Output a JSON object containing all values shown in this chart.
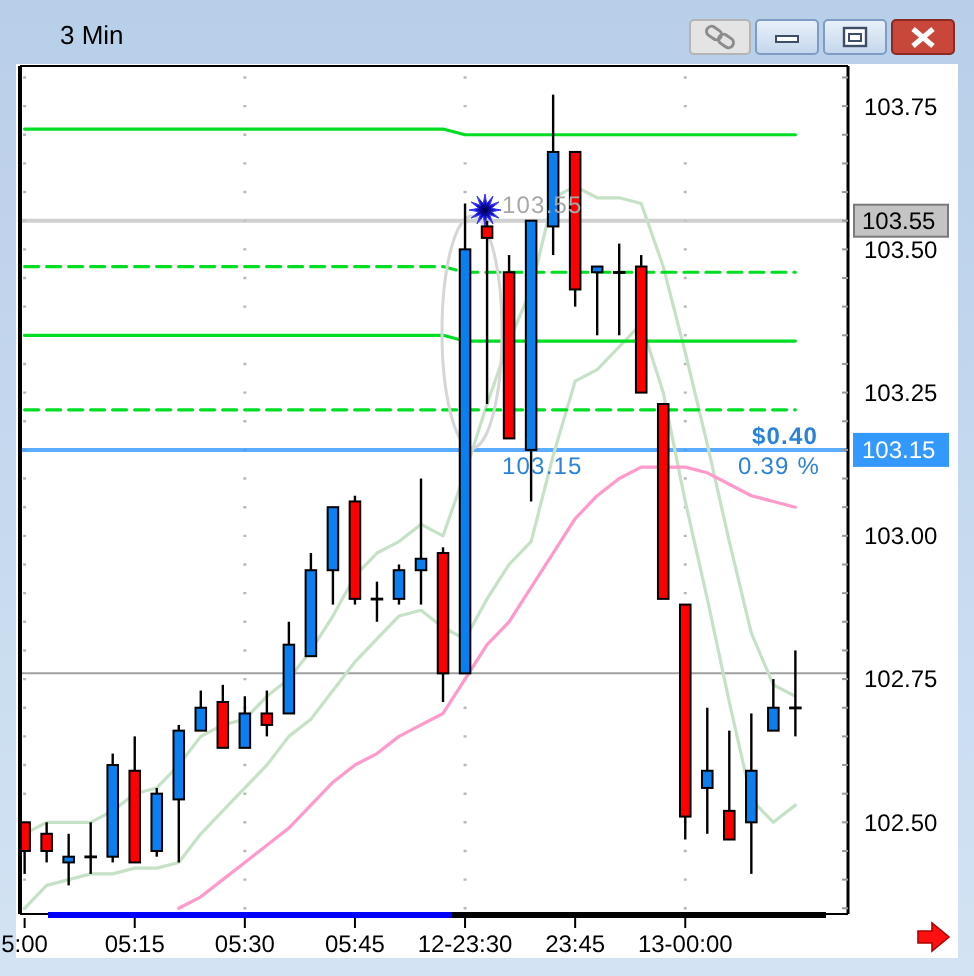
{
  "chart_data": {
    "type": "candlestick",
    "title": "3 Min",
    "categories": [
      "5:00",
      null,
      null,
      null,
      null,
      "05:15",
      null,
      null,
      null,
      null,
      "05:30",
      null,
      null,
      null,
      null,
      "05:45",
      null,
      null,
      null,
      null,
      "12-23:30",
      null,
      null,
      null,
      null,
      "23:45",
      null,
      null,
      null,
      null,
      "13-00:00",
      null,
      null,
      null,
      null,
      null
    ],
    "ohlc": [
      [
        102.5,
        102.5,
        102.41,
        102.45
      ],
      [
        102.48,
        102.5,
        102.43,
        102.45
      ],
      [
        102.43,
        102.48,
        102.39,
        102.44
      ],
      [
        102.44,
        102.5,
        102.41,
        102.44
      ],
      [
        102.44,
        102.62,
        102.43,
        102.6
      ],
      [
        102.59,
        102.65,
        102.43,
        102.43
      ],
      [
        102.45,
        102.56,
        102.44,
        102.55
      ],
      [
        102.54,
        102.67,
        102.43,
        102.66
      ],
      [
        102.66,
        102.73,
        102.66,
        102.7
      ],
      [
        102.71,
        102.74,
        102.63,
        102.63
      ],
      [
        102.63,
        102.72,
        102.63,
        102.69
      ],
      [
        102.69,
        102.73,
        102.65,
        102.67
      ],
      [
        102.69,
        102.85,
        102.69,
        102.81
      ],
      [
        102.79,
        102.97,
        102.79,
        102.94
      ],
      [
        102.94,
        103.05,
        102.88,
        103.05
      ],
      [
        103.06,
        103.07,
        102.88,
        102.89
      ],
      [
        102.89,
        102.92,
        102.85,
        102.89
      ],
      [
        102.89,
        102.95,
        102.88,
        102.94
      ],
      [
        102.94,
        103.1,
        102.88,
        102.96
      ],
      [
        102.97,
        102.98,
        102.71,
        102.76
      ],
      [
        102.76,
        103.58,
        102.76,
        103.5
      ],
      [
        103.54,
        103.55,
        103.23,
        103.52
      ],
      [
        103.46,
        103.49,
        103.17,
        103.17
      ],
      [
        103.15,
        103.55,
        103.06,
        103.55
      ],
      [
        103.54,
        103.77,
        103.49,
        103.67
      ],
      [
        103.67,
        103.67,
        103.4,
        103.43
      ],
      [
        103.46,
        103.47,
        103.35,
        103.47
      ],
      [
        103.46,
        103.51,
        103.35,
        103.46
      ],
      [
        103.47,
        103.49,
        103.25,
        103.25
      ],
      [
        103.23,
        103.23,
        102.89,
        102.89
      ],
      [
        102.88,
        102.88,
        102.47,
        102.51
      ],
      [
        102.56,
        102.7,
        102.48,
        102.59
      ],
      [
        102.52,
        102.66,
        102.47,
        102.47
      ],
      [
        102.5,
        102.69,
        102.41,
        102.59
      ],
      [
        102.66,
        102.75,
        102.66,
        102.7
      ],
      [
        102.7,
        102.8,
        102.65,
        102.7
      ]
    ],
    "colors": [
      "#ff0000",
      "#ff0000",
      "#0b7ff0",
      "#000000",
      "#0b7ff0",
      "#ff0000",
      "#0b7ff0",
      "#0b7ff0",
      "#0b7ff0",
      "#ff0000",
      "#0b7ff0",
      "#ff0000",
      "#0b7ff0",
      "#0b7ff0",
      "#0b7ff0",
      "#ff0000",
      "#000000",
      "#0b7ff0",
      "#0b7ff0",
      "#ff0000",
      "#0b7ff0",
      "#ff0000",
      "#ff0000",
      "#0b7ff0",
      "#0b7ff0",
      "#ff0000",
      "#0b7ff0",
      "#000000",
      "#ff0000",
      "#ff0000",
      "#ff0000",
      "#0b7ff0",
      "#ff0000",
      "#0b7ff0",
      "#0b7ff0",
      "#000000"
    ],
    "series": [
      {
        "type": "line",
        "color": "#c6e2c6",
        "values": [
          102.48,
          102.5,
          102.5,
          102.5,
          102.52,
          102.55,
          102.56,
          102.6,
          102.65,
          102.67,
          102.68,
          102.72,
          102.75,
          102.8,
          102.86,
          102.93,
          102.97,
          102.99,
          103.02,
          103.0,
          103.11,
          103.23,
          103.34,
          103.43,
          103.59,
          103.61,
          103.59,
          103.59,
          103.58,
          103.47,
          103.32,
          103.16,
          102.99,
          102.83,
          102.74,
          102.72
        ]
      },
      {
        "type": "line",
        "color": "#c6e2c6",
        "values": [
          102.35,
          102.39,
          102.4,
          102.41,
          102.41,
          102.42,
          102.42,
          102.43,
          102.48,
          102.52,
          102.56,
          102.6,
          102.65,
          102.68,
          102.73,
          102.78,
          102.82,
          102.86,
          102.87,
          102.84,
          102.82,
          102.89,
          102.95,
          102.99,
          103.14,
          103.27,
          103.29,
          103.33,
          103.37,
          103.25,
          103.06,
          102.89,
          102.71,
          102.54,
          102.5,
          102.53
        ]
      },
      {
        "type": "line",
        "color": "#ff99cc",
        "values": [
          null,
          null,
          null,
          null,
          null,
          null,
          null,
          102.35,
          102.37,
          102.4,
          102.43,
          102.46,
          102.49,
          102.53,
          102.57,
          102.6,
          102.62,
          102.65,
          102.67,
          102.69,
          102.75,
          102.81,
          102.85,
          102.91,
          102.97,
          103.03,
          103.07,
          103.1,
          103.12,
          103.12,
          103.12,
          103.11,
          103.09,
          103.07,
          103.06,
          103.05
        ]
      },
      {
        "type": "line",
        "color": "#00dd22",
        "values": [
          103.71,
          103.71,
          103.71,
          103.71,
          103.71,
          103.71,
          103.71,
          103.71,
          103.71,
          103.71,
          103.71,
          103.71,
          103.71,
          103.71,
          103.71,
          103.71,
          103.71,
          103.71,
          103.71,
          103.71,
          103.7,
          103.7,
          103.7,
          103.7,
          103.7,
          103.7,
          103.7,
          103.7,
          103.7,
          103.7,
          103.7,
          103.7,
          103.7,
          103.7,
          103.7,
          103.7
        ]
      },
      {
        "type": "line",
        "color": "#00dd22",
        "line_style": "dashed",
        "values": [
          103.47,
          103.47,
          103.47,
          103.47,
          103.47,
          103.47,
          103.47,
          103.47,
          103.47,
          103.47,
          103.47,
          103.47,
          103.47,
          103.47,
          103.47,
          103.47,
          103.47,
          103.47,
          103.47,
          103.47,
          103.46,
          103.46,
          103.46,
          103.46,
          103.46,
          103.46,
          103.46,
          103.46,
          103.46,
          103.46,
          103.46,
          103.46,
          103.46,
          103.46,
          103.46,
          103.46
        ]
      },
      {
        "type": "line",
        "color": "#00dd22",
        "values": [
          103.35,
          103.35,
          103.35,
          103.35,
          103.35,
          103.35,
          103.35,
          103.35,
          103.35,
          103.35,
          103.35,
          103.35,
          103.35,
          103.35,
          103.35,
          103.35,
          103.35,
          103.35,
          103.35,
          103.35,
          103.34,
          103.34,
          103.34,
          103.34,
          103.34,
          103.34,
          103.34,
          103.34,
          103.34,
          103.34,
          103.34,
          103.34,
          103.34,
          103.34,
          103.34,
          103.34
        ]
      },
      {
        "type": "line",
        "color": "#00dd22",
        "line_style": "dashed",
        "values": [
          103.22,
          103.22,
          103.22,
          103.22,
          103.22,
          103.22,
          103.22,
          103.22,
          103.22,
          103.22,
          103.22,
          103.22,
          103.22,
          103.22,
          103.22,
          103.22,
          103.22,
          103.22,
          103.22,
          103.22,
          103.22,
          103.22,
          103.22,
          103.22,
          103.22,
          103.22,
          103.22,
          103.22,
          103.22,
          103.22,
          103.22,
          103.22,
          103.22,
          103.22,
          103.22,
          103.22
        ]
      }
    ],
    "ylim": [
      102.34,
      103.82
    ],
    "yticks": [
      {
        "value": 102.35,
        "label": null
      },
      {
        "value": 102.4,
        "label": null
      },
      {
        "value": 102.45,
        "label": null
      },
      {
        "value": 102.5,
        "label": "102.50"
      },
      {
        "value": 102.55,
        "label": null
      },
      {
        "value": 102.6,
        "label": null
      },
      {
        "value": 102.65,
        "label": null
      },
      {
        "value": 102.7,
        "label": null
      },
      {
        "value": 102.75,
        "label": "102.75"
      },
      {
        "value": 102.8,
        "label": null
      },
      {
        "value": 102.85,
        "label": null
      },
      {
        "value": 102.9,
        "label": null
      },
      {
        "value": 102.95,
        "label": null
      },
      {
        "value": 103.0,
        "label": "103.00"
      },
      {
        "value": 103.05,
        "label": null
      },
      {
        "value": 103.1,
        "label": null
      },
      {
        "value": 103.15,
        "label": null
      },
      {
        "value": 103.2,
        "label": null
      },
      {
        "value": 103.25,
        "label": "103.25"
      },
      {
        "value": 103.3,
        "label": null
      },
      {
        "value": 103.35,
        "label": null
      },
      {
        "value": 103.4,
        "label": null
      },
      {
        "value": 103.45,
        "label": null
      },
      {
        "value": 103.5,
        "label": "103.50"
      },
      {
        "value": 103.55,
        "label": null
      },
      {
        "value": 103.6,
        "label": null
      },
      {
        "value": 103.65,
        "label": null
      },
      {
        "value": 103.7,
        "label": null
      },
      {
        "value": 103.75,
        "label": "103.75"
      },
      {
        "value": 103.8,
        "label": null
      }
    ],
    "grid": "y",
    "ref_lines": [
      {
        "axis": "y",
        "value": 102.76,
        "color": "#a0a0a0"
      },
      {
        "axis": "y",
        "value": 103.55,
        "label": "103.55",
        "color": "#c4c4c4"
      },
      {
        "axis": "y",
        "value": 103.15,
        "label": "103.15",
        "color": "#3399ff"
      }
    ],
    "annotations": [
      {
        "text": "103.55",
        "y": 103.55
      },
      {
        "text": "103.15",
        "y": 103.15
      },
      {
        "text": "$0.40",
        "y": 103.15
      },
      {
        "text": "0.39 %",
        "y": 103.15
      }
    ]
  }
}
